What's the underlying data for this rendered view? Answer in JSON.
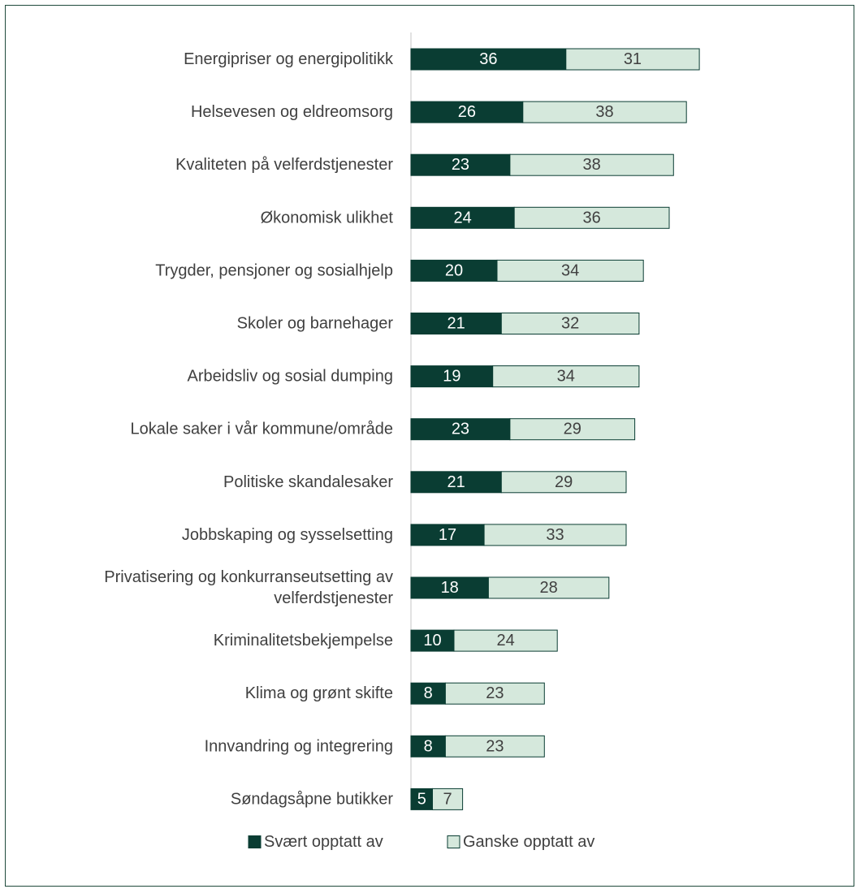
{
  "chart_data": {
    "type": "bar",
    "orientation": "horizontal",
    "stacked": true,
    "categories": [
      [
        "Energipriser og energipolitikk"
      ],
      [
        "Helsevesen og eldreomsorg"
      ],
      [
        "Kvaliteten på velferdstjenester"
      ],
      [
        "Økonomisk ulikhet"
      ],
      [
        "Trygder, pensjoner og sosialhjelp"
      ],
      [
        "Skoler og barnehager"
      ],
      [
        "Arbeidsliv og sosial dumping"
      ],
      [
        "Lokale saker i vår kommune/område"
      ],
      [
        "Politiske skandalesaker"
      ],
      [
        "Jobbskaping og sysselsetting"
      ],
      [
        "Privatisering og konkurranseutsetting av",
        "velferdstjenester"
      ],
      [
        "Kriminalitetsbekjempelse"
      ],
      [
        "Klima og grønt skifte"
      ],
      [
        "Innvandring og integrering"
      ],
      [
        "Søndagsåpne butikker"
      ]
    ],
    "series": [
      {
        "name": "Svært opptatt av",
        "color": "#0a3d33",
        "label_color": "#ffffff",
        "values": [
          36,
          26,
          23,
          24,
          20,
          21,
          19,
          23,
          21,
          17,
          18,
          10,
          8,
          8,
          5
        ]
      },
      {
        "name": "Ganske opptatt av",
        "color": "#d5e8dc",
        "label_color": "#404040",
        "values": [
          31,
          38,
          38,
          36,
          34,
          32,
          34,
          29,
          29,
          33,
          28,
          24,
          23,
          23,
          7
        ]
      }
    ],
    "xlim": [
      0,
      100
    ],
    "grid": false,
    "legend": "bottom",
    "axis_color": "#d9d9d9",
    "bar_outline": "#0a3d33"
  }
}
